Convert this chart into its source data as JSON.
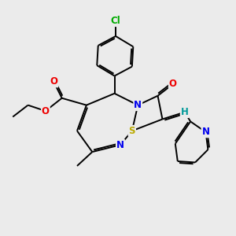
{
  "background_color": "#ebebeb",
  "atom_colors": {
    "C": "#000000",
    "N": "#0000ee",
    "O": "#ee0000",
    "S": "#bbaa00",
    "Cl": "#00aa00",
    "H": "#009999"
  },
  "bond_color": "#000000",
  "bond_lw": 1.4
}
